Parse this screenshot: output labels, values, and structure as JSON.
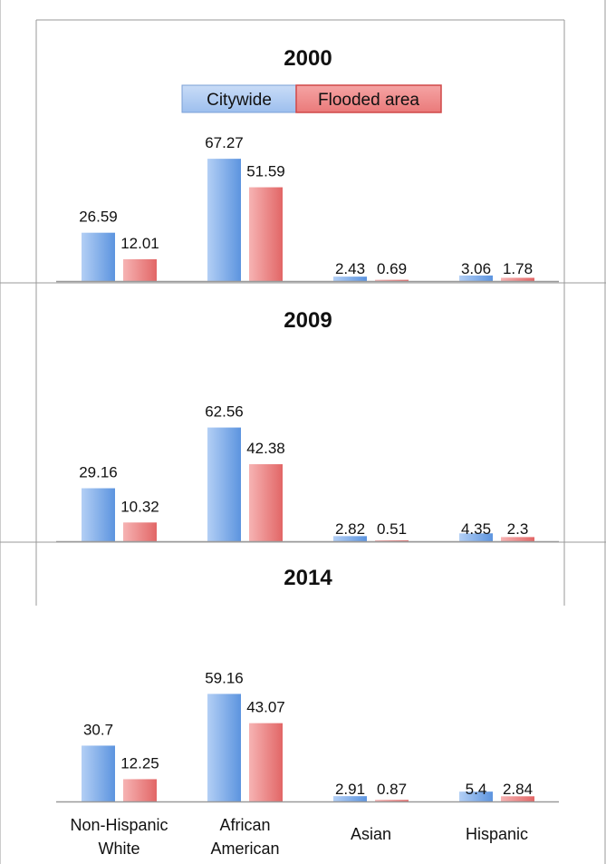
{
  "legend": [
    {
      "label": "Citywide",
      "color": "#7ea9e6"
    },
    {
      "label": "Flooded area",
      "color": "#ec7f7f"
    }
  ],
  "chart_data": [
    {
      "type": "bar",
      "title": "2000",
      "categories": [
        "",
        "",
        "",
        ""
      ],
      "series": [
        {
          "name": "Citywide",
          "values": [
            26.59,
            67.27,
            2.43,
            3.06
          ]
        },
        {
          "name": "Flooded area",
          "values": [
            12.01,
            51.59,
            0.69,
            1.78
          ]
        }
      ],
      "value_labels": [
        [
          "26.59",
          "67.27",
          "2.43",
          "3.06"
        ],
        [
          "12.01",
          "51.59",
          "0.69",
          "1.78"
        ]
      ],
      "ylim": [
        0,
        75
      ],
      "legend_position": "top-center",
      "grid": false
    },
    {
      "type": "bar",
      "title": "2009",
      "categories": [
        "",
        "",
        "",
        ""
      ],
      "series": [
        {
          "name": "Citywide",
          "values": [
            29.16,
            62.56,
            2.82,
            4.35
          ]
        },
        {
          "name": "Flooded area",
          "values": [
            10.32,
            42.38,
            0.51,
            2.3
          ]
        }
      ],
      "value_labels": [
        [
          "29.16",
          "62.56",
          "2.82",
          "4.35"
        ],
        [
          "10.32",
          "42.38",
          "0.51",
          "2.3"
        ]
      ],
      "ylim": [
        0,
        75
      ],
      "grid": false
    },
    {
      "type": "bar",
      "title": "2014",
      "categories": [
        "Non-Hispanic White",
        "African American",
        "Asian",
        "Hispanic"
      ],
      "series": [
        {
          "name": "Citywide",
          "values": [
            30.7,
            59.16,
            2.91,
            5.4
          ]
        },
        {
          "name": "Flooded area",
          "values": [
            12.25,
            43.07,
            0.87,
            2.84
          ]
        }
      ],
      "value_labels": [
        [
          "30.7",
          "59.16",
          "2.91",
          "5.4"
        ],
        [
          "12.25",
          "43.07",
          "0.87",
          "2.84"
        ]
      ],
      "ylim": [
        0,
        75
      ],
      "grid": false
    }
  ],
  "colors": {
    "citywide_light": "#a9c8f3",
    "citywide_dark": "#5b93de",
    "flooded_light": "#f4a6a6",
    "flooded_dark": "#e06565",
    "axis": "#9a9a9a",
    "frame": "#8a8a8a",
    "text": "#111111"
  }
}
